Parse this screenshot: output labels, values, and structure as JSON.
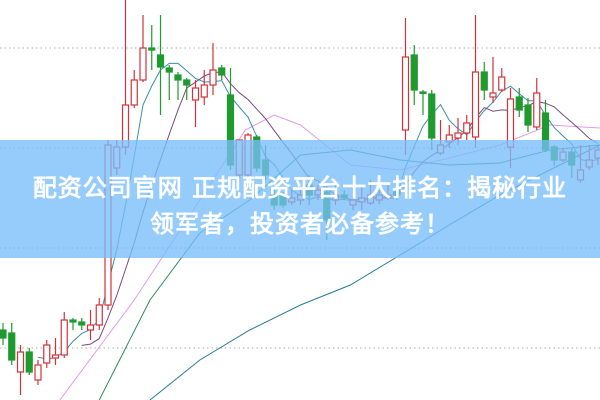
{
  "title_banner": {
    "line1": "配资公司官网 正规配资平台十大排名：揭秘行业",
    "line2": "领军者，投资者必备参考！"
  },
  "colors": {
    "up": "#d2333a",
    "down": "#1e9a2e",
    "banner": "#78befa",
    "ma5": "#3a8ea8",
    "ma10": "#7a4a80",
    "ma20": "#e49ae6",
    "ma30": "#2e8a60",
    "ma60": "#2a7a9a",
    "grid": "#aaaaaa"
  },
  "chart_data": {
    "type": "candlestick",
    "title": "",
    "grid": true,
    "grid_levels": [
      88,
      63,
      38,
      13
    ],
    "ylim": [
      0,
      100
    ],
    "candles_ohlc": [
      [
        17.5,
        19.25,
        13.75,
        15.5
      ],
      [
        16.75,
        19.25,
        8.75,
        10
      ],
      [
        7,
        13.75,
        1.25,
        12
      ],
      [
        12,
        13,
        6.25,
        7
      ],
      [
        5,
        10,
        3.75,
        8.75
      ],
      [
        9.25,
        15,
        8,
        13.75
      ],
      [
        10.5,
        15.5,
        8.75,
        11.25
      ],
      [
        11.25,
        22,
        10.5,
        20
      ],
      [
        20,
        20.5,
        17.5,
        19.5
      ],
      [
        19.5,
        20.5,
        17.5,
        18.75
      ],
      [
        17.5,
        22.5,
        15,
        18.75
      ],
      [
        18.75,
        25.5,
        17.5,
        23.75
      ],
      [
        23.75,
        65,
        22.5,
        63.75
      ],
      [
        58,
        65,
        56.25,
        63.25
      ],
      [
        63.25,
        100,
        61.25,
        73.75
      ],
      [
        73.75,
        82.5,
        73,
        80
      ],
      [
        80,
        96.25,
        79.5,
        88
      ],
      [
        88,
        93.75,
        82.5,
        87.5
      ],
      [
        86.25,
        96.25,
        71.25,
        83.25
      ],
      [
        83,
        83.75,
        75,
        82
      ],
      [
        81.25,
        82,
        75,
        80
      ],
      [
        80,
        80.5,
        75,
        78.75
      ],
      [
        75,
        80,
        68.25,
        78
      ],
      [
        75.75,
        82.5,
        73.75,
        78.75
      ],
      [
        78.75,
        89.25,
        76.25,
        82.5
      ],
      [
        83,
        83.75,
        80,
        81.25
      ],
      [
        76.25,
        83,
        57.5,
        58.75
      ],
      [
        56.25,
        65,
        55.5,
        65
      ],
      [
        56.25,
        66.75,
        55,
        66.25
      ],
      [
        65.75,
        66.25,
        57,
        58
      ],
      [
        60,
        63.75,
        55,
        56.25
      ],
      [
        51.25,
        52.5,
        47.5,
        48.75
      ],
      [
        51.25,
        52,
        48,
        48.75
      ],
      [
        49.5,
        52.5,
        48.75,
        50.5
      ],
      [
        50,
        53,
        48.75,
        51.25
      ],
      [
        53.75,
        56.25,
        48.75,
        51.25
      ],
      [
        51.25,
        53.75,
        50,
        52.5
      ],
      [
        52,
        53.75,
        40,
        45
      ],
      [
        50,
        53.75,
        48.75,
        51.25
      ],
      [
        51.25,
        52.5,
        50,
        50.5
      ],
      [
        48.75,
        53.75,
        47.5,
        50
      ],
      [
        49.5,
        53.75,
        47.5,
        50.5
      ],
      [
        49.25,
        55,
        48.75,
        51.25
      ],
      [
        50,
        52.5,
        49,
        51.25
      ],
      [
        50.5,
        53.75,
        50,
        51.25
      ],
      [
        52.5,
        53.75,
        50,
        51.25
      ],
      [
        67.5,
        95.5,
        61.25,
        85.75
      ],
      [
        86.25,
        88.75,
        73.75,
        77.5
      ],
      [
        77,
        77.5,
        71.25,
        76.75
      ],
      [
        76.5,
        77.5,
        62.5,
        65.5
      ],
      [
        61.75,
        70,
        61.25,
        63.75
      ],
      [
        64.5,
        68.75,
        63,
        66.25
      ],
      [
        65.5,
        70.5,
        63.75,
        66.75
      ],
      [
        66.75,
        71.25,
        65,
        69.25
      ],
      [
        65.75,
        96.25,
        63,
        82
      ],
      [
        82,
        84.5,
        75,
        77.5
      ],
      [
        75.75,
        85.75,
        74.25,
        76.75
      ],
      [
        77.5,
        83,
        77,
        80.75
      ],
      [
        63.25,
        78,
        58,
        75.25
      ],
      [
        75.75,
        78,
        70.75,
        72.5
      ],
      [
        73.75,
        75.5,
        67,
        68.75
      ],
      [
        68.25,
        80.5,
        67.5,
        76.75
      ],
      [
        71.75,
        75,
        62,
        62.5
      ],
      [
        63.25,
        63.75,
        58.5,
        60
      ],
      [
        60,
        63,
        59.5,
        62
      ],
      [
        62,
        63,
        55.5,
        58.75
      ],
      [
        55,
        63.75,
        54.25,
        57.5
      ],
      [
        58.25,
        63.75,
        57.5,
        60
      ],
      [
        60.5,
        63.75,
        58.75,
        62.5
      ]
    ],
    "moving_averages": [
      {
        "period": 5,
        "color_key": "ma5"
      },
      {
        "period": 10,
        "color_key": "ma10"
      }
    ],
    "long_lines": [
      {
        "color_key": "ma20",
        "points": [
          [
            6.5,
            0
          ],
          [
            15,
            25
          ],
          [
            22.5,
            50
          ],
          [
            27.7,
            67.5
          ],
          [
            31,
            71.25
          ],
          [
            34,
            68.75
          ],
          [
            39.7,
            58.75
          ],
          [
            45.4,
            57.5
          ],
          [
            51,
            60.5
          ],
          [
            56.8,
            63.75
          ],
          [
            62.5,
            68.75
          ],
          [
            68.2,
            68
          ]
        ]
      },
      {
        "color_key": "ma30",
        "points": [
          [
            11,
            0
          ],
          [
            16.8,
            25
          ],
          [
            22.5,
            41.75
          ],
          [
            28.2,
            50
          ],
          [
            34,
            61.25
          ],
          [
            39.7,
            62.5
          ],
          [
            45.4,
            60
          ],
          [
            51,
            58.75
          ],
          [
            56.8,
            59.25
          ],
          [
            62.5,
            62.5
          ],
          [
            68.2,
            63.75
          ]
        ]
      },
      {
        "color_key": "ma60",
        "points": [
          [
            16.8,
            0
          ],
          [
            22.5,
            10
          ],
          [
            28.2,
            17.5
          ],
          [
            34,
            23.75
          ],
          [
            39.7,
            28.75
          ],
          [
            45.4,
            36.25
          ],
          [
            51,
            43.75
          ],
          [
            56.8,
            51.25
          ],
          [
            62.5,
            57.5
          ],
          [
            68.2,
            63.75
          ]
        ]
      }
    ]
  }
}
